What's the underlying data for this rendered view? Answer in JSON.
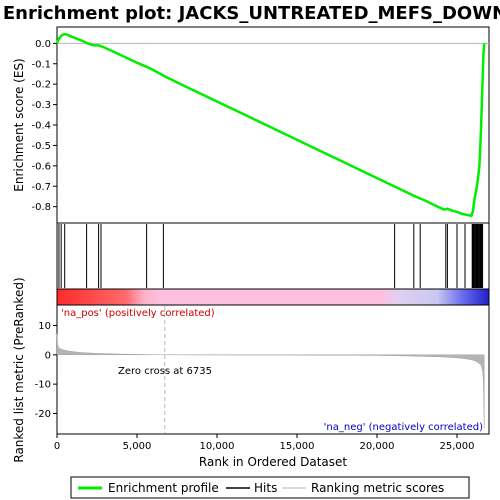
{
  "chart_data": {
    "type": "line",
    "title": "Enrichment plot: JACKS_UNTREATED_MEFS_DOWN",
    "xlabel": "Rank in Ordered Dataset",
    "ylabel_top": "Enrichment score (ES)",
    "ylabel_bottom": "Ranked list metric (PreRanked)",
    "x_range": [
      0,
      27000
    ],
    "x_ticks": [
      0,
      5000,
      10000,
      15000,
      20000,
      25000
    ],
    "x_tick_labels": [
      "0",
      "5,000",
      "10,000",
      "15,000",
      "20,000",
      "25,000"
    ],
    "es_range": [
      -0.88,
      0.08
    ],
    "es_ticks": [
      0.0,
      -0.1,
      -0.2,
      -0.3,
      -0.4,
      -0.5,
      -0.6,
      -0.7,
      -0.8
    ],
    "es_tick_labels": [
      "0.0",
      "-0.1",
      "-0.2",
      "-0.3",
      "-0.4",
      "-0.5",
      "-0.6",
      "-0.7",
      "-0.8"
    ],
    "metric_range": [
      -27,
      17
    ],
    "metric_ticks": [
      10,
      0,
      -10,
      -20
    ],
    "metric_tick_labels": [
      "10",
      "0",
      "-10",
      "-20"
    ],
    "grid": false,
    "enrichment_profile": {
      "x": [
        0,
        100,
        200,
        300,
        500,
        700,
        1000,
        1500,
        1900,
        2300,
        2600,
        2800,
        3500,
        5000,
        5600,
        6000,
        6700,
        8000,
        10000,
        12000,
        14000,
        16000,
        18000,
        20000,
        21200,
        22000,
        22400,
        23000,
        23800,
        24200,
        24400,
        24700,
        25000,
        25300,
        25600,
        25900,
        26000,
        26050,
        26100,
        26200,
        26300,
        26400,
        26450,
        26500,
        26550,
        26600,
        26650,
        26700
      ],
      "y": [
        0.0,
        0.02,
        0.03,
        0.04,
        0.045,
        0.04,
        0.03,
        0.015,
        0.0,
        -0.01,
        -0.01,
        -0.015,
        -0.04,
        -0.095,
        -0.115,
        -0.13,
        -0.16,
        -0.21,
        -0.285,
        -0.36,
        -0.435,
        -0.51,
        -0.585,
        -0.66,
        -0.705,
        -0.735,
        -0.75,
        -0.77,
        -0.8,
        -0.815,
        -0.81,
        -0.82,
        -0.825,
        -0.835,
        -0.84,
        -0.845,
        -0.82,
        -0.79,
        -0.76,
        -0.72,
        -0.67,
        -0.6,
        -0.52,
        -0.42,
        -0.3,
        -0.18,
        -0.06,
        0.0
      ]
    },
    "hits": [
      120,
      260,
      480,
      1850,
      2600,
      2750,
      5600,
      6650,
      21100,
      22300,
      22700,
      24300,
      24400,
      25000,
      25500,
      25950,
      26000,
      26050,
      26100,
      26150,
      26200,
      26250,
      26300,
      26350,
      26400,
      26450,
      26500,
      26550,
      26600
    ],
    "metric": {
      "x": [
        0,
        40,
        100,
        200,
        400,
        800,
        1500,
        2500,
        4000,
        6000,
        6735,
        10000,
        15000,
        20000,
        22000,
        24000,
        25000,
        25500,
        26000,
        26300,
        26500,
        26600,
        26650,
        26700
      ],
      "y": [
        7.2,
        3.5,
        2.5,
        2.1,
        1.7,
        1.2,
        0.8,
        0.5,
        0.25,
        0.05,
        0.0,
        -0.05,
        -0.1,
        -0.2,
        -0.4,
        -0.7,
        -1.0,
        -1.3,
        -1.8,
        -2.5,
        -3.5,
        -5.5,
        -9.0,
        -25.0
      ]
    },
    "zero_cross_label": "Zero cross at 6735",
    "zero_cross_x": 6735,
    "pos_label": "'na_pos' (positively correlated)",
    "neg_label": "'na_neg' (negatively correlated)",
    "legend": {
      "placement": "bottom",
      "entries": [
        {
          "label": "Enrichment profile",
          "color": "#00ee00"
        },
        {
          "label": "Hits",
          "color": "#000000"
        },
        {
          "label": "Ranking metric scores",
          "color": "#b4b4b4"
        }
      ]
    },
    "colors": {
      "profile": "#00ee00",
      "metric_fill": "#b4b4b4",
      "pos_label": "#cc0000",
      "neg_label": "#0000cc",
      "zero_line": "#b4b4b4"
    }
  }
}
